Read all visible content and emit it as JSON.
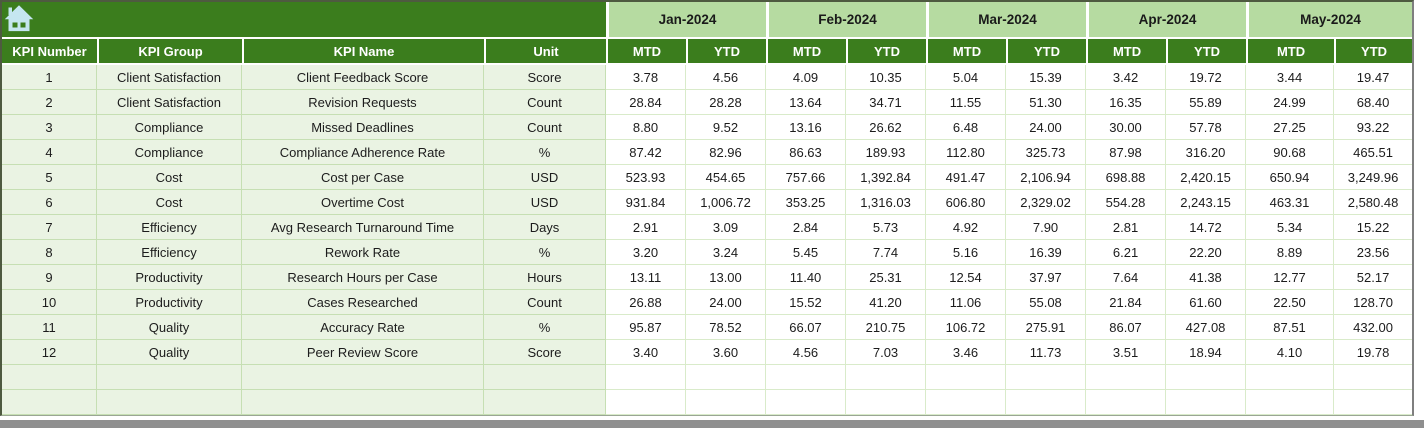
{
  "icons": {
    "home": "home-icon"
  },
  "columns": {
    "kpi": [
      "KPI Number",
      "KPI Group",
      "KPI Name",
      "Unit"
    ],
    "months": [
      "Jan-2024",
      "Feb-2024",
      "Mar-2024",
      "Apr-2024",
      "May-2024"
    ],
    "subs": [
      "MTD",
      "YTD"
    ]
  },
  "rows": [
    {
      "number": "1",
      "group": "Client Satisfaction",
      "name": "Client Feedback Score",
      "unit": "Score",
      "values": [
        "3.78",
        "4.56",
        "4.09",
        "10.35",
        "5.04",
        "15.39",
        "3.42",
        "19.72",
        "3.44",
        "19.47"
      ]
    },
    {
      "number": "2",
      "group": "Client Satisfaction",
      "name": "Revision Requests",
      "unit": "Count",
      "values": [
        "28.84",
        "28.28",
        "13.64",
        "34.71",
        "11.55",
        "51.30",
        "16.35",
        "55.89",
        "24.99",
        "68.40"
      ]
    },
    {
      "number": "3",
      "group": "Compliance",
      "name": "Missed Deadlines",
      "unit": "Count",
      "values": [
        "8.80",
        "9.52",
        "13.16",
        "26.62",
        "6.48",
        "24.00",
        "30.00",
        "57.78",
        "27.25",
        "93.22"
      ]
    },
    {
      "number": "4",
      "group": "Compliance",
      "name": "Compliance Adherence Rate",
      "unit": "%",
      "values": [
        "87.42",
        "82.96",
        "86.63",
        "189.93",
        "112.80",
        "325.73",
        "87.98",
        "316.20",
        "90.68",
        "465.51"
      ]
    },
    {
      "number": "5",
      "group": "Cost",
      "name": "Cost per Case",
      "unit": "USD",
      "values": [
        "523.93",
        "454.65",
        "757.66",
        "1,392.84",
        "491.47",
        "2,106.94",
        "698.88",
        "2,420.15",
        "650.94",
        "3,249.96"
      ]
    },
    {
      "number": "6",
      "group": "Cost",
      "name": "Overtime Cost",
      "unit": "USD",
      "values": [
        "931.84",
        "1,006.72",
        "353.25",
        "1,316.03",
        "606.80",
        "2,329.02",
        "554.28",
        "2,243.15",
        "463.31",
        "2,580.48"
      ]
    },
    {
      "number": "7",
      "group": "Efficiency",
      "name": "Avg Research Turnaround Time",
      "unit": "Days",
      "values": [
        "2.91",
        "3.09",
        "2.84",
        "5.73",
        "4.92",
        "7.90",
        "2.81",
        "14.72",
        "5.34",
        "15.22"
      ]
    },
    {
      "number": "8",
      "group": "Efficiency",
      "name": "Rework Rate",
      "unit": "%",
      "values": [
        "3.20",
        "3.24",
        "5.45",
        "7.74",
        "5.16",
        "16.39",
        "6.21",
        "22.20",
        "8.89",
        "23.56"
      ]
    },
    {
      "number": "9",
      "group": "Productivity",
      "name": "Research Hours per Case",
      "unit": "Hours",
      "values": [
        "13.11",
        "13.00",
        "11.40",
        "25.31",
        "12.54",
        "37.97",
        "7.64",
        "41.38",
        "12.77",
        "52.17"
      ]
    },
    {
      "number": "10",
      "group": "Productivity",
      "name": "Cases Researched",
      "unit": "Count",
      "values": [
        "26.88",
        "24.00",
        "15.52",
        "41.20",
        "11.06",
        "55.08",
        "21.84",
        "61.60",
        "22.50",
        "128.70"
      ]
    },
    {
      "number": "11",
      "group": "Quality",
      "name": "Accuracy Rate",
      "unit": "%",
      "values": [
        "95.87",
        "78.52",
        "66.07",
        "210.75",
        "106.72",
        "275.91",
        "86.07",
        "427.08",
        "87.51",
        "432.00"
      ]
    },
    {
      "number": "12",
      "group": "Quality",
      "name": "Peer Review Score",
      "unit": "Score",
      "values": [
        "3.40",
        "3.60",
        "4.56",
        "7.03",
        "3.46",
        "11.73",
        "3.51",
        "18.94",
        "4.10",
        "19.78"
      ]
    }
  ],
  "empty_row_count": 2,
  "colors": {
    "header_green": "#3b7d1d",
    "month_green": "#b6dba1",
    "row_green": "#eaf3e3",
    "grid_green_dark": "#c6dfb3",
    "grid_green_light": "#d9ebca",
    "icon_blue": "#c5e6f0",
    "bottom_bar_gray": "#8f8f8f"
  }
}
